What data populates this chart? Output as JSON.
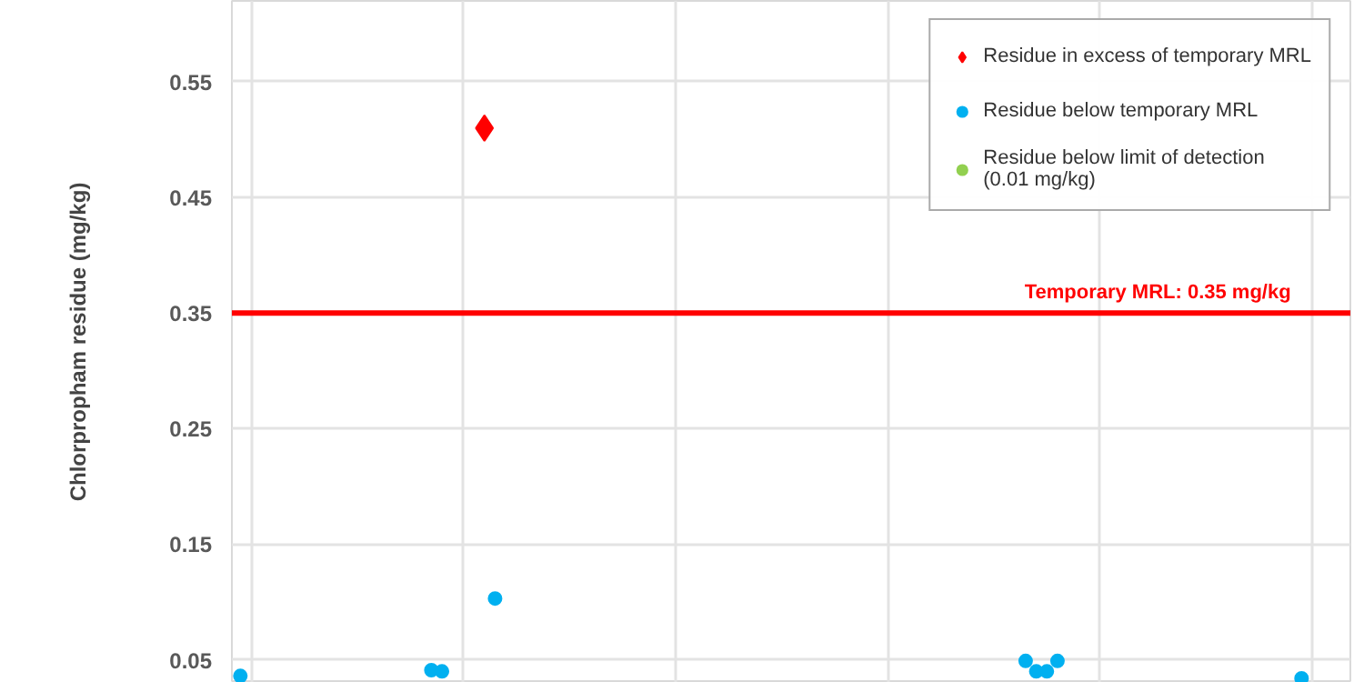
{
  "chart_data": {
    "type": "scatter",
    "ylabel": "Chlorpropham residue (mg/kg)",
    "categories": [
      null,
      null,
      null,
      null,
      null,
      null,
      null,
      null,
      null,
      null,
      null,
      null,
      null,
      null,
      null,
      null,
      null,
      null,
      null,
      null,
      null,
      null,
      null,
      null,
      null,
      null,
      null,
      null,
      null,
      null,
      null,
      null,
      null,
      null,
      null,
      null,
      null,
      null,
      null,
      null,
      null,
      null,
      null,
      null,
      null,
      null,
      null,
      null,
      null,
      null,
      null,
      null,
      null,
      null,
      null,
      null,
      null,
      null,
      null,
      null,
      null,
      null,
      null,
      null,
      null,
      null,
      null,
      null,
      null,
      null,
      null,
      null,
      null,
      null,
      null,
      null,
      null,
      null,
      null,
      null,
      null,
      null,
      null,
      null,
      null,
      null,
      null,
      null,
      null,
      null,
      null,
      null,
      null,
      null,
      null,
      null,
      null,
      null,
      null,
      null,
      null,
      null,
      null,
      null,
      null
    ],
    "ylim": [
      0.03,
      0.62
    ],
    "yticks": [
      0.05,
      0.15,
      0.25,
      0.35,
      0.45,
      0.55
    ],
    "tick_labels": "y",
    "grid": true,
    "legend": "top right",
    "series": [
      {
        "name": "Residue in excess of temporary MRL",
        "color": "#ff0000",
        "marker": "diamond",
        "values": [
          null,
          null,
          null,
          null,
          null,
          null,
          null,
          null,
          null,
          null,
          null,
          null,
          null,
          null,
          null,
          null,
          null,
          null,
          null,
          null,
          null,
          null,
          null,
          0.51,
          null,
          null,
          null,
          null,
          null,
          null,
          null,
          null,
          null,
          null,
          null,
          null,
          null,
          null,
          null,
          null,
          null,
          null,
          null,
          null,
          null,
          null,
          null,
          null,
          null,
          null,
          null,
          null,
          null,
          null,
          null,
          null,
          null,
          null,
          null,
          null,
          null,
          null,
          null,
          null,
          null,
          null,
          null,
          null,
          null,
          null,
          null,
          null,
          null,
          null,
          null,
          null,
          null,
          null,
          null,
          null,
          null,
          null,
          null,
          null,
          null,
          null,
          null,
          null,
          null,
          null,
          null,
          null,
          null,
          null,
          null,
          null,
          null,
          null,
          null,
          null,
          null,
          null,
          null,
          null,
          null
        ]
      },
      {
        "name": "Residue below temporary MRL",
        "color": "#00b0f0",
        "marker": "circle",
        "values": [
          0.036,
          null,
          null,
          null,
          null,
          null,
          null,
          null,
          null,
          null,
          null,
          null,
          null,
          null,
          null,
          null,
          null,
          null,
          0.041,
          0.04,
          null,
          null,
          null,
          null,
          0.103,
          null,
          null,
          null,
          null,
          null,
          null,
          null,
          null,
          null,
          null,
          null,
          null,
          null,
          null,
          null,
          null,
          null,
          null,
          null,
          null,
          null,
          null,
          null,
          null,
          null,
          null,
          null,
          null,
          null,
          null,
          null,
          null,
          null,
          null,
          null,
          null,
          null,
          null,
          null,
          null,
          null,
          null,
          null,
          null,
          null,
          null,
          null,
          null,
          null,
          0.049,
          0.04,
          0.04,
          0.049,
          null,
          null,
          null,
          null,
          null,
          null,
          null,
          null,
          null,
          null,
          null,
          null,
          null,
          null,
          null,
          null,
          null,
          null,
          null,
          null,
          null,
          null,
          0.034,
          null,
          null,
          null,
          null
        ]
      },
      {
        "name": "Residue below limit of detection\n(0.01 mg/kg)",
        "color": "#92d050",
        "marker": "circle",
        "values": [
          null,
          null,
          null,
          null,
          null,
          null,
          null,
          null,
          null,
          null,
          null,
          null,
          null,
          null,
          null,
          null,
          null,
          null,
          null,
          null,
          null,
          null,
          null,
          null,
          null,
          null,
          null,
          null,
          null,
          null,
          null,
          null,
          null,
          null,
          null,
          null,
          null,
          null,
          null,
          null,
          null,
          null,
          null,
          null,
          null,
          null,
          null,
          null,
          null,
          null,
          null,
          null,
          null,
          null,
          null,
          null,
          null,
          null,
          null,
          null,
          null,
          null,
          null,
          null,
          null,
          null,
          null,
          null,
          null,
          null,
          null,
          null,
          null,
          null,
          null,
          null,
          null,
          null,
          null,
          null,
          null,
          null,
          null,
          null,
          null,
          null,
          null,
          null,
          null,
          null,
          null,
          null,
          null,
          null,
          null,
          null,
          null,
          null,
          null,
          null,
          null,
          null,
          null,
          null,
          null
        ]
      }
    ],
    "ref_lines": [
      {
        "axis": "y",
        "value": 0.35,
        "label": "Temporary MRL: 0.35 mg/kg",
        "color": "#ff0000"
      }
    ]
  }
}
